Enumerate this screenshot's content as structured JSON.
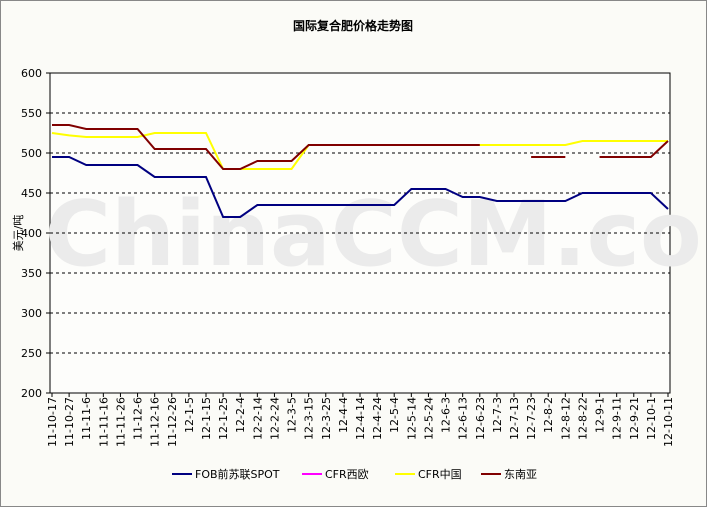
{
  "chart_data": {
    "type": "line",
    "title": "国际复合肥价格走势图",
    "y_label": "美元/吨",
    "watermark": "ChinaCCM.com",
    "categories": [
      "11-10-17",
      "11-10-27",
      "11-11-6",
      "11-11-16",
      "11-11-26",
      "11-12-6",
      "11-12-16",
      "11-12-26",
      "12-1-5",
      "12-1-15",
      "12-1-25",
      "12-2-4",
      "12-2-14",
      "12-2-24",
      "12-3-5",
      "12-3-15",
      "12-3-25",
      "12-4-4",
      "12-4-14",
      "12-4-24",
      "12-5-4",
      "12-5-14",
      "12-5-24",
      "12-6-3",
      "12-6-13",
      "12-6-23",
      "12-7-3",
      "12-7-13",
      "12-7-23",
      "12-8-2",
      "12-8-12",
      "12-8-22",
      "12-9-1",
      "12-9-11",
      "12-9-21",
      "12-10-1",
      "12-10-11"
    ],
    "series": [
      {
        "name": "FOB前苏联SPOT",
        "color": "#000080",
        "values": [
          495,
          495,
          485,
          485,
          485,
          485,
          470,
          470,
          470,
          470,
          420,
          420,
          435,
          435,
          435,
          435,
          435,
          435,
          435,
          435,
          435,
          455,
          455,
          455,
          445,
          445,
          440,
          440,
          440,
          440,
          440,
          450,
          450,
          450,
          450,
          450,
          430
        ]
      },
      {
        "name": "CFR西欧",
        "color": "#ff00ff",
        "values": [
          null,
          null,
          null,
          null,
          null,
          null,
          null,
          null,
          null,
          null,
          null,
          null,
          null,
          null,
          null,
          null,
          null,
          null,
          null,
          null,
          null,
          null,
          null,
          null,
          null,
          null,
          null,
          null,
          null,
          null,
          null,
          null,
          null,
          null,
          null,
          null,
          null
        ]
      },
      {
        "name": "CFR中国",
        "color": "#ffff00",
        "values": [
          525,
          522,
          520,
          520,
          520,
          520,
          525,
          525,
          525,
          525,
          480,
          480,
          480,
          480,
          480,
          510,
          510,
          510,
          510,
          510,
          510,
          510,
          510,
          510,
          510,
          510,
          510,
          510,
          510,
          510,
          510,
          515,
          515,
          515,
          515,
          515,
          515
        ]
      },
      {
        "name": "东南亚",
        "color": "#800000",
        "values": [
          535,
          535,
          530,
          530,
          530,
          530,
          505,
          505,
          505,
          505,
          480,
          480,
          490,
          490,
          490,
          510,
          510,
          510,
          510,
          510,
          510,
          510,
          510,
          510,
          510,
          510,
          null,
          null,
          495,
          495,
          495,
          null,
          495,
          495,
          495,
          495,
          515
        ]
      }
    ],
    "ylim": [
      200,
      600
    ],
    "yticks": [
      200,
      250,
      300,
      350,
      400,
      450,
      500,
      550,
      600
    ],
    "grid": true,
    "legend": "bottom"
  }
}
